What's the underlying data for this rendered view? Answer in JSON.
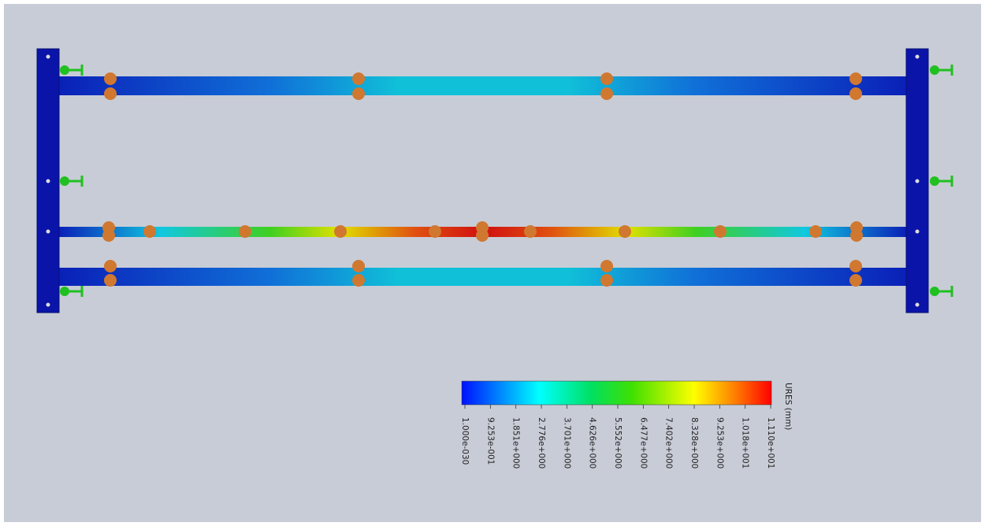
{
  "legend": {
    "title": "URES (mm)",
    "ticks": [
      "1.000e-030",
      "9.253e-001",
      "1.851e+000",
      "2.776e+000",
      "3.701e+000",
      "4.626e+000",
      "5.552e+000",
      "6.477e+000",
      "7.402e+000",
      "8.328e+000",
      "9.253e+000",
      "1.018e+001",
      "1.110e+001"
    ]
  }
}
